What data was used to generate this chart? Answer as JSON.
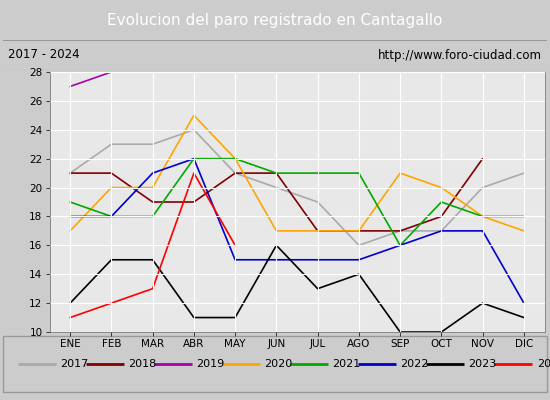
{
  "title": "Evolucion del paro registrado en Cantagallo",
  "subtitle_left": "2017 - 2024",
  "subtitle_right": "http://www.foro-ciudad.com",
  "xlabel_months": [
    "ENE",
    "FEB",
    "MAR",
    "ABR",
    "MAY",
    "JUN",
    "JUL",
    "AGO",
    "SEP",
    "OCT",
    "NOV",
    "DIC"
  ],
  "ylim": [
    10,
    28
  ],
  "yticks": [
    10,
    12,
    14,
    16,
    18,
    20,
    22,
    24,
    26,
    28
  ],
  "series": {
    "2017": {
      "color": "#aaaaaa",
      "values": [
        21,
        23,
        23,
        24,
        21,
        20,
        19,
        16,
        17,
        17,
        20,
        21
      ]
    },
    "2018": {
      "color": "#800000",
      "values": [
        21,
        21,
        19,
        19,
        21,
        21,
        17,
        17,
        17,
        18,
        22,
        null
      ]
    },
    "2019": {
      "color": "#aa00aa",
      "values": [
        27,
        28,
        28,
        28,
        null,
        null,
        null,
        null,
        null,
        null,
        null,
        null
      ]
    },
    "2020": {
      "color": "#ffa500",
      "values": [
        17,
        20,
        20,
        25,
        22,
        17,
        17,
        17,
        21,
        20,
        18,
        17
      ]
    },
    "2021": {
      "color": "#00aa00",
      "values": [
        19,
        18,
        18,
        22,
        22,
        21,
        21,
        21,
        16,
        19,
        18,
        18
      ]
    },
    "2022": {
      "color": "#0000cc",
      "values": [
        18,
        18,
        21,
        22,
        15,
        15,
        15,
        15,
        16,
        17,
        17,
        12
      ]
    },
    "2023": {
      "color": "#000000",
      "values": [
        12,
        15,
        15,
        11,
        11,
        16,
        13,
        14,
        10,
        10,
        12,
        11
      ]
    },
    "2024": {
      "color": "#ff0000",
      "values": [
        11,
        12,
        13,
        21,
        16,
        null,
        null,
        null,
        null,
        null,
        null,
        null
      ]
    }
  },
  "title_bg_color": "#5588cc",
  "title_text_color": "white",
  "subtitle_bg_color": "#dddddd",
  "plot_bg_color": "#e8e8e8",
  "grid_color": "white",
  "legend_bg_color": "#f2f2f2",
  "outer_bg_color": "#cccccc"
}
